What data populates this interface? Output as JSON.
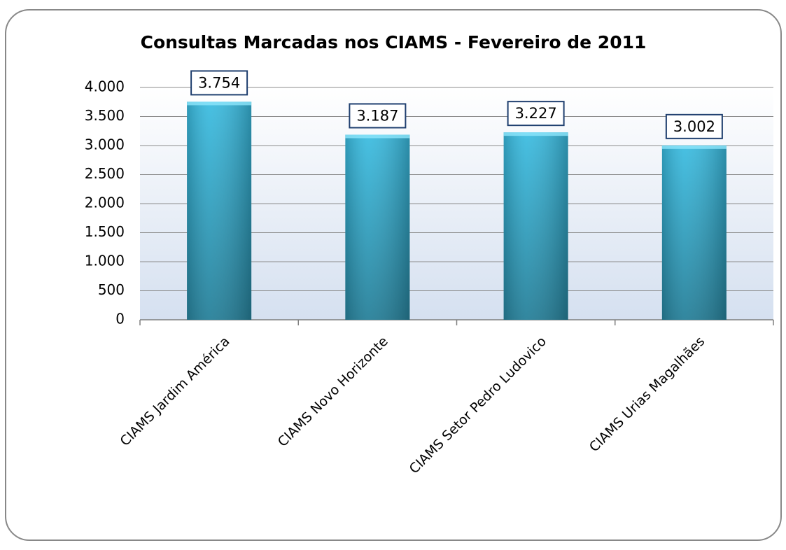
{
  "chart_data": {
    "type": "bar",
    "title": "Consultas Marcadas nos CIAMS - Fevereiro de 2011",
    "categories": [
      "CIAMS Jardim América",
      "CIAMS Novo Horizonte",
      "CIAMS Setor Pedro Ludovico",
      "CIAMS Urias Magalhães"
    ],
    "values": [
      3754,
      3187,
      3227,
      3002
    ],
    "value_labels": [
      "3.754",
      "3.187",
      "3.227",
      "3.002"
    ],
    "color": "#38bbe0",
    "ylim": [
      0,
      4000
    ],
    "yticks": [
      0,
      500,
      {
        "value": 1000,
        "label": "1.000"
      },
      {
        "value": 1500,
        "label": "1.500"
      },
      {
        "value": 2000,
        "label": "2.000"
      },
      {
        "value": 2500,
        "label": "2.500"
      },
      {
        "value": 3000,
        "label": "3.000"
      },
      {
        "value": 3500,
        "label": "3.500"
      },
      {
        "value": 4000,
        "label": "4.000"
      }
    ],
    "grid": true
  }
}
